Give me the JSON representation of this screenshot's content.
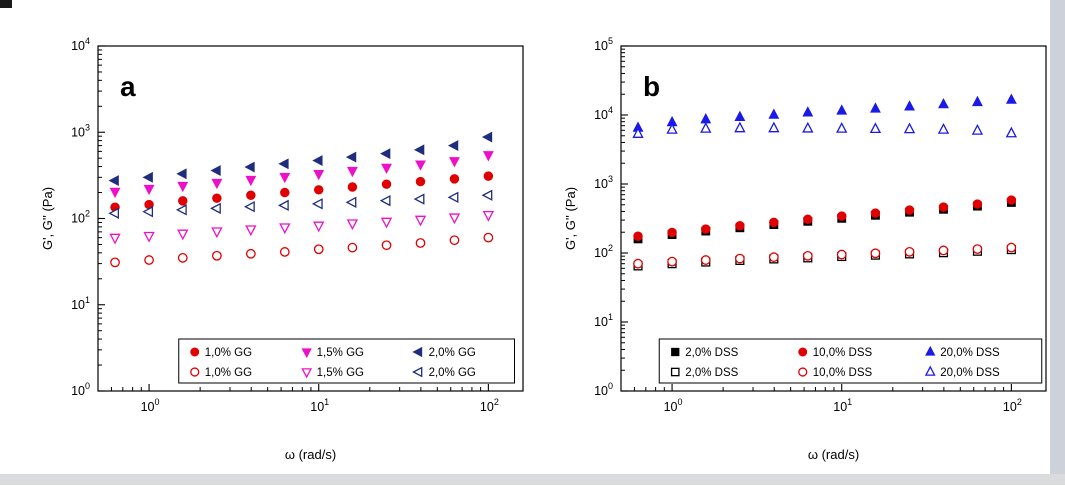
{
  "figure": {
    "background": "#ffffff",
    "description_colors": {
      "red": "#e00000",
      "magenta": "#ee10c8",
      "navy": "#1f2d7e",
      "blue": "#1a1ae6",
      "black": "#000000"
    }
  },
  "chart_data": [
    {
      "type": "scatter",
      "panel_label": "a",
      "xlabel": "ω (rad/s)",
      "ylabel": "G', G'' (Pa)",
      "tick_base": "10",
      "x_scale": "log",
      "y_scale": "log",
      "xlim": [
        0.5,
        160
      ],
      "ylim": [
        1,
        10000
      ],
      "grid": false,
      "legend": {
        "position": "bottom-inside",
        "x_frac": 0.19,
        "w_frac": 0.79
      },
      "x": [
        0.63,
        1,
        1.58,
        2.51,
        3.98,
        6.31,
        10,
        15.8,
        25.1,
        39.8,
        63.1,
        100
      ],
      "series": [
        {
          "name": "1,0% GG",
          "quantity": "G'",
          "marker": "circle",
          "color": "#e00000",
          "fill": "filled",
          "values": [
            135,
            145,
            160,
            172,
            186,
            200,
            215,
            232,
            250,
            268,
            288,
            310
          ]
        },
        {
          "name": "1,5% GG",
          "quantity": "G'",
          "marker": "triangle-down",
          "color": "#ee10c8",
          "fill": "filled",
          "values": [
            205,
            222,
            240,
            260,
            282,
            305,
            330,
            358,
            390,
            425,
            465,
            545
          ]
        },
        {
          "name": "2,0% GG",
          "quantity": "G'",
          "marker": "triangle-left",
          "color": "#1f2d7e",
          "fill": "filled",
          "values": [
            275,
            300,
            330,
            360,
            395,
            430,
            470,
            515,
            565,
            625,
            700,
            880
          ]
        },
        {
          "name": "1,0% GG",
          "quantity": "G''",
          "marker": "circle",
          "color": "#e00000",
          "fill": "open",
          "values": [
            31,
            33,
            35,
            37,
            39,
            41,
            44,
            46,
            49,
            52,
            56,
            60
          ]
        },
        {
          "name": "1,5% GG",
          "quantity": "G''",
          "marker": "triangle-down",
          "color": "#ee10c8",
          "fill": "open",
          "values": [
            60,
            63,
            67,
            71,
            75,
            79,
            83,
            88,
            92,
            97,
            103,
            110
          ]
        },
        {
          "name": "2,0% GG",
          "quantity": "G''",
          "marker": "triangle-left",
          "color": "#1f2d7e",
          "fill": "open",
          "values": [
            115,
            120,
            126,
            131,
            137,
            142,
            148,
            154,
            161,
            168,
            176,
            186
          ]
        }
      ]
    },
    {
      "type": "scatter",
      "panel_label": "b",
      "xlabel": "ω (rad/s)",
      "ylabel": "G', G'' (Pa)",
      "tick_base": "10",
      "x_scale": "log",
      "y_scale": "log",
      "xlim": [
        0.5,
        160
      ],
      "ylim": [
        1,
        100000
      ],
      "grid": false,
      "legend": {
        "position": "bottom-inside",
        "x_frac": 0.09,
        "w_frac": 0.9
      },
      "x": [
        0.63,
        1,
        1.58,
        2.51,
        3.98,
        6.31,
        10,
        15.8,
        25.1,
        39.8,
        63.1,
        100
      ],
      "series": [
        {
          "name": "2,0% DSS",
          "quantity": "G'",
          "marker": "square",
          "color": "#000000",
          "fill": "filled",
          "values": [
            160,
            185,
            208,
            232,
            258,
            288,
            318,
            352,
            390,
            430,
            478,
            540
          ]
        },
        {
          "name": "10,0% DSS",
          "quantity": "G'",
          "marker": "circle",
          "color": "#e00000",
          "fill": "filled",
          "values": [
            175,
            198,
            222,
            248,
            278,
            308,
            342,
            378,
            418,
            462,
            512,
            585
          ]
        },
        {
          "name": "20,0% DSS",
          "quantity": "G'",
          "marker": "triangle-up",
          "color": "#1a1ae6",
          "fill": "filled",
          "values": [
            6500,
            7800,
            8600,
            9300,
            10000,
            10800,
            11500,
            12300,
            13200,
            14200,
            15300,
            16500
          ]
        },
        {
          "name": "2,0% DSS",
          "quantity": "G''",
          "marker": "square",
          "color": "#000000",
          "fill": "open",
          "values": [
            65,
            70,
            74,
            78,
            82,
            85,
            89,
            93,
            97,
            101,
            106,
            112
          ]
        },
        {
          "name": "10,0% DSS",
          "quantity": "G''",
          "marker": "circle",
          "color": "#e00000",
          "fill": "open",
          "values": [
            70,
            75,
            79,
            83,
            87,
            91,
            95,
            99,
            104,
            109,
            114,
            120
          ]
        },
        {
          "name": "20,0% DSS",
          "quantity": "G''",
          "marker": "triangle-up",
          "color": "#1a1ae6",
          "fill": "open",
          "values": [
            5300,
            6100,
            6300,
            6400,
            6400,
            6350,
            6300,
            6250,
            6200,
            6100,
            5900,
            5400
          ]
        }
      ]
    }
  ]
}
